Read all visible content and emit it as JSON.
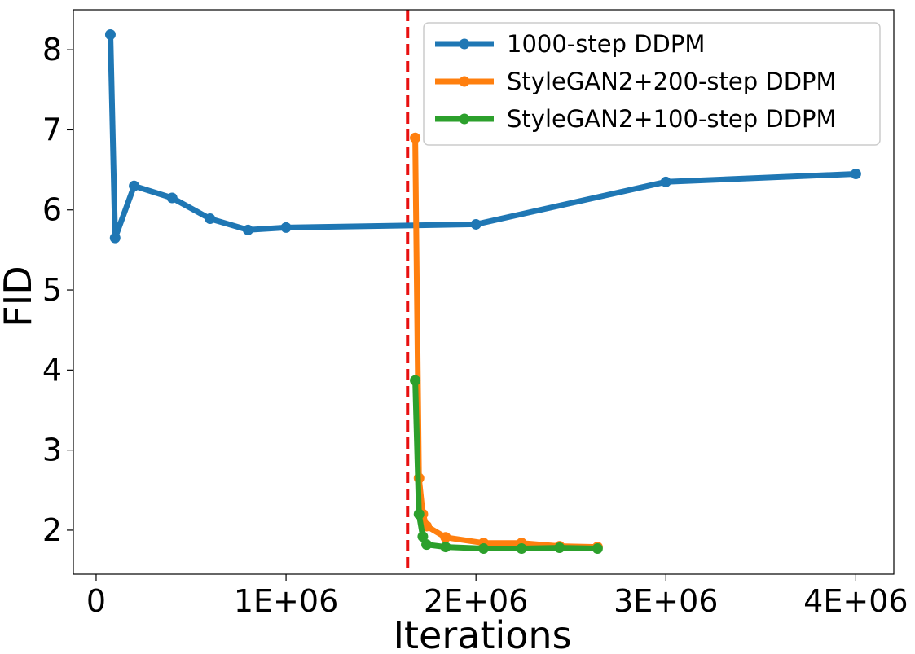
{
  "chart_data": {
    "type": "line",
    "title": "",
    "xlabel": "Iterations",
    "ylabel": "FID",
    "xlim": [
      -120000,
      4200000
    ],
    "ylim": [
      1.45,
      8.5
    ],
    "x_ticks": [
      {
        "value": 0,
        "label": "0"
      },
      {
        "value": 1000000,
        "label": "1E+06"
      },
      {
        "value": 2000000,
        "label": "2E+06"
      },
      {
        "value": 3000000,
        "label": "3E+06"
      },
      {
        "value": 4000000,
        "label": "4E+06"
      }
    ],
    "y_ticks": [
      {
        "value": 2,
        "label": "2"
      },
      {
        "value": 3,
        "label": "3"
      },
      {
        "value": 4,
        "label": "4"
      },
      {
        "value": 5,
        "label": "5"
      },
      {
        "value": 6,
        "label": "6"
      },
      {
        "value": 7,
        "label": "7"
      },
      {
        "value": 8,
        "label": "8"
      }
    ],
    "grid": false,
    "legend_position": "top-right",
    "reference_line": {
      "x": 1640000,
      "color": "#e81010",
      "style": "dashed"
    },
    "series": [
      {
        "name": "1000-step DDPM",
        "color": "#1f77b4",
        "x": [
          75000,
          100000,
          200000,
          400000,
          600000,
          800000,
          1000000,
          2000000,
          3000000,
          4000000
        ],
        "y": [
          8.19,
          5.65,
          6.3,
          6.15,
          5.89,
          5.75,
          5.78,
          5.82,
          6.35,
          6.45
        ]
      },
      {
        "name": "StyleGAN2+200-step DDPM",
        "color": "#ff7f0e",
        "x": [
          1680000,
          1700000,
          1720000,
          1740000,
          1840000,
          2040000,
          2240000,
          2440000,
          2640000
        ],
        "y": [
          6.9,
          2.65,
          2.2,
          2.05,
          1.91,
          1.84,
          1.84,
          1.8,
          1.79
        ]
      },
      {
        "name": "StyleGAN2+100-step DDPM",
        "color": "#2ca02c",
        "x": [
          1680000,
          1700000,
          1720000,
          1740000,
          1840000,
          2040000,
          2240000,
          2440000,
          2640000
        ],
        "y": [
          3.87,
          2.2,
          1.92,
          1.82,
          1.79,
          1.77,
          1.77,
          1.78,
          1.77
        ]
      }
    ]
  }
}
